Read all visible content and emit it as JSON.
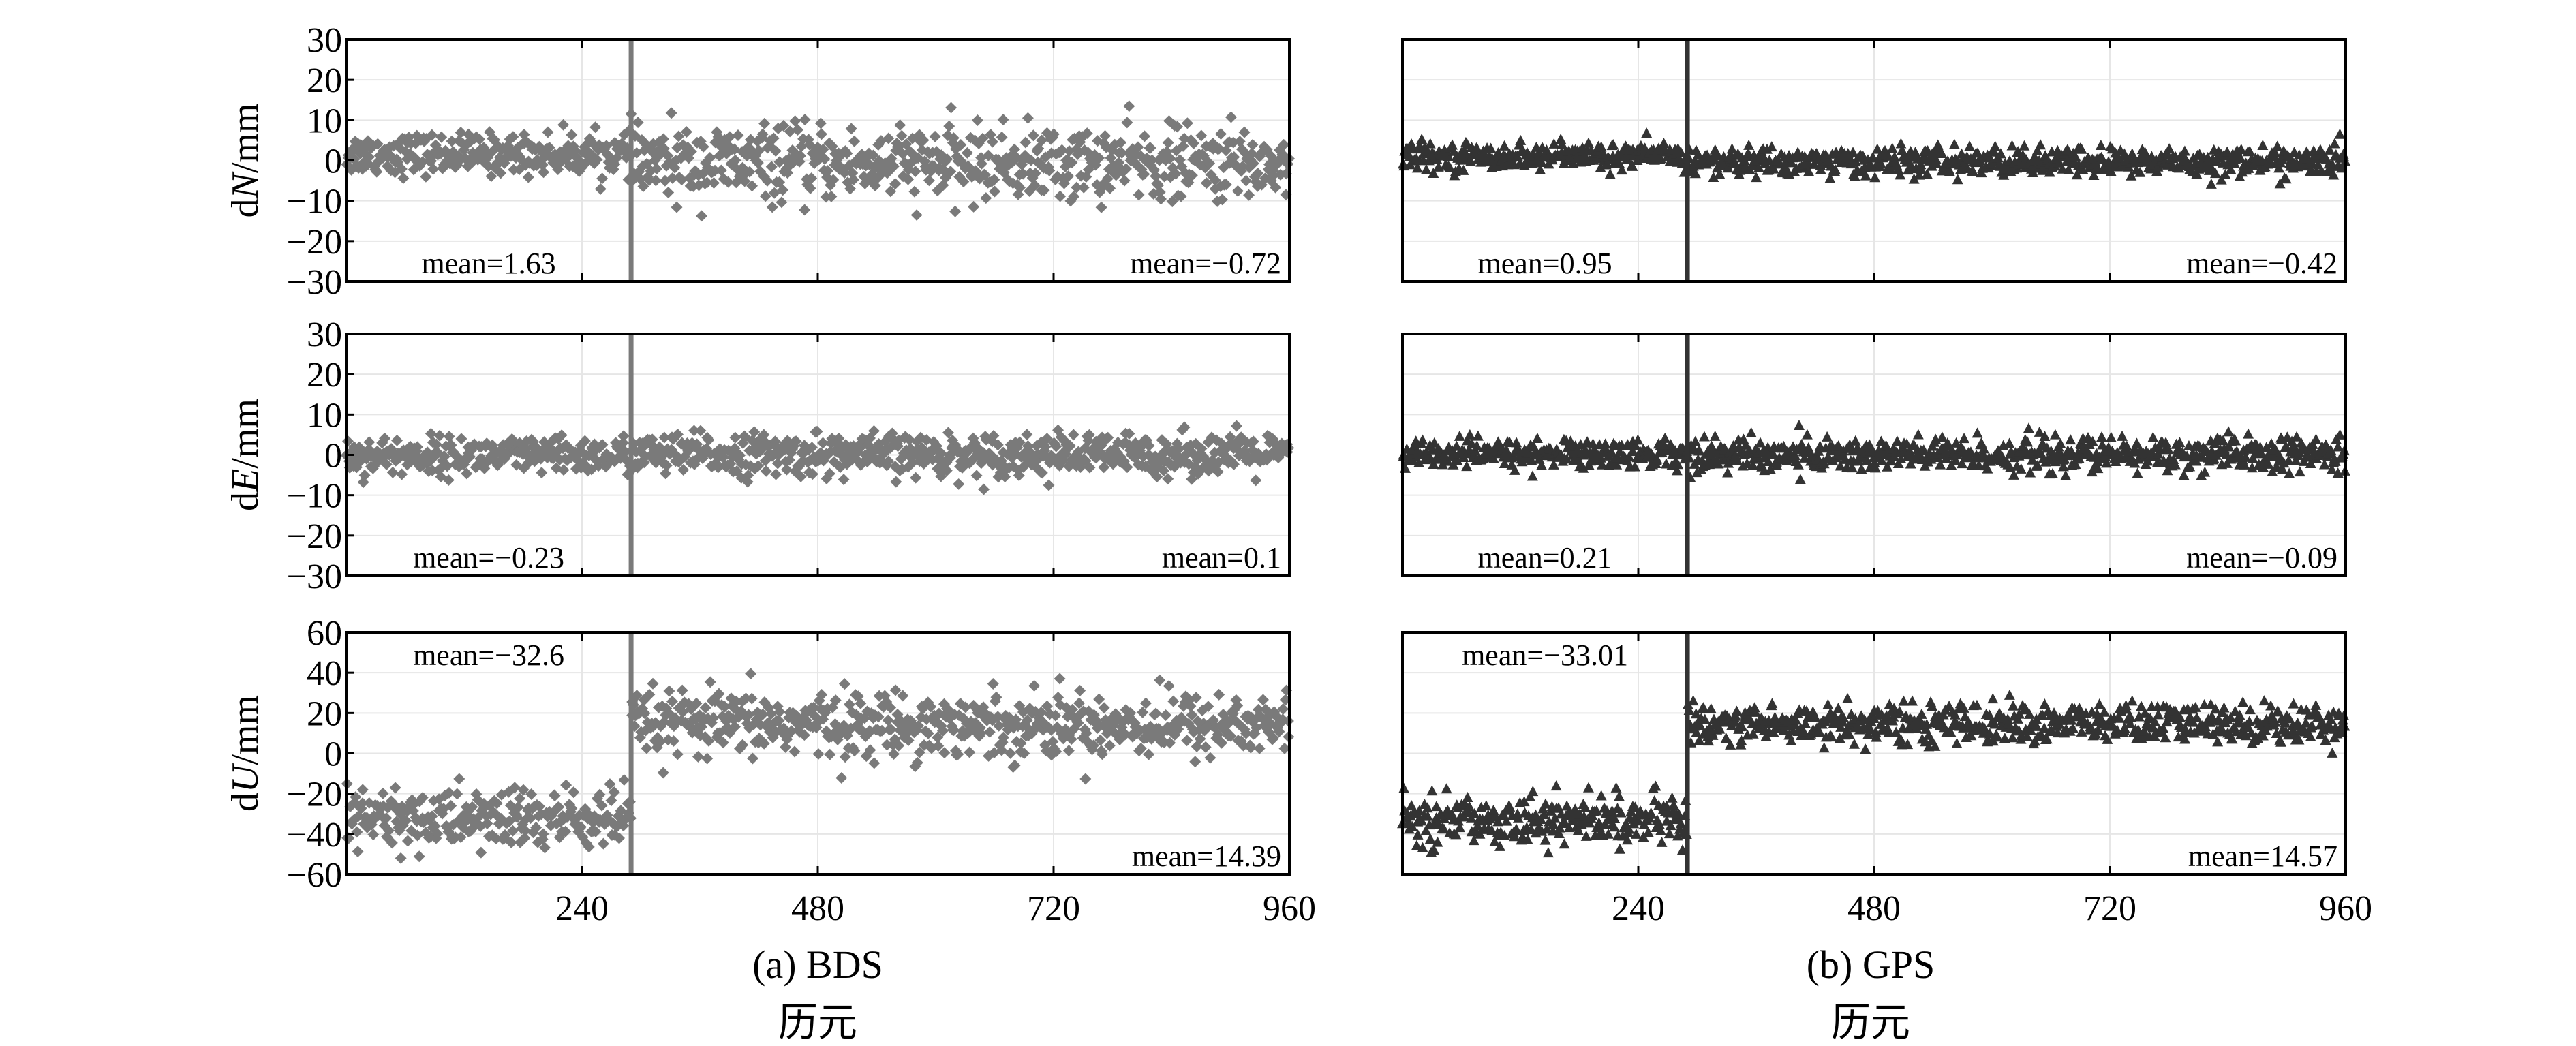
{
  "figure": {
    "x_label": "历元",
    "x_ticks": [
      240,
      480,
      720,
      960
    ]
  },
  "chart_data": [
    {
      "type": "scatter",
      "caption": "(a) BDS",
      "marker": "diamond",
      "color": "#7a7a7a",
      "x_range": [
        0,
        960
      ],
      "change_epoch": 290,
      "panels": [
        {
          "ylabel_prefix": "d",
          "ylabel_var": "N",
          "ylabel_suffix": "/mm",
          "ylim": [
            -30,
            30
          ],
          "yticks": [
            30,
            20,
            10,
            0,
            -10,
            -20,
            -30
          ],
          "segments": [
            {
              "range": [
                0,
                290
              ],
              "mean": 1.63,
              "sd": 2.5
            },
            {
              "range": [
                290,
                960
              ],
              "mean": -0.72,
              "sd": 4.5
            }
          ],
          "mean_labels": [
            "mean=1.63",
            "mean=−0.72"
          ],
          "mean_label_pos": "bottom"
        },
        {
          "ylabel_prefix": "d",
          "ylabel_var": "E",
          "ylabel_suffix": "/mm",
          "ylim": [
            -30,
            30
          ],
          "yticks": [
            30,
            20,
            10,
            0,
            -10,
            -20,
            -30
          ],
          "segments": [
            {
              "range": [
                0,
                290
              ],
              "mean": -0.23,
              "sd": 2.3
            },
            {
              "range": [
                290,
                960
              ],
              "mean": 0.1,
              "sd": 2.6
            }
          ],
          "mean_labels": [
            "mean=−0.23",
            "mean=0.1"
          ],
          "mean_label_pos": "bottom"
        },
        {
          "ylabel_prefix": "d",
          "ylabel_var": "U",
          "ylabel_suffix": "/mm",
          "ylim": [
            -60,
            60
          ],
          "yticks": [
            60,
            40,
            20,
            0,
            -20,
            -40,
            -60
          ],
          "segments": [
            {
              "range": [
                0,
                290
              ],
              "mean": -32.6,
              "sd": 8
            },
            {
              "range": [
                290,
                960
              ],
              "mean": 14.39,
              "sd": 8
            }
          ],
          "mean_labels": [
            "mean=−32.6",
            "mean=14.39"
          ],
          "mean_label_pos": "split"
        }
      ]
    },
    {
      "type": "scatter",
      "caption": "(b) GPS",
      "marker": "triangle",
      "color": "#333333",
      "x_range": [
        0,
        960
      ],
      "change_epoch": 290,
      "panels": [
        {
          "ylim": [
            -30,
            30
          ],
          "yticks": [],
          "segments": [
            {
              "range": [
                0,
                290
              ],
              "mean": 0.95,
              "sd": 1.6
            },
            {
              "range": [
                290,
                960
              ],
              "mean": -0.42,
              "sd": 1.8
            }
          ],
          "mean_labels": [
            "mean=0.95",
            "mean=−0.42"
          ],
          "mean_label_pos": "bottom"
        },
        {
          "ylim": [
            -30,
            30
          ],
          "yticks": [],
          "segments": [
            {
              "range": [
                0,
                290
              ],
              "mean": 0.21,
              "sd": 1.8
            },
            {
              "range": [
                290,
                960
              ],
              "mean": -0.09,
              "sd": 2.2
            }
          ],
          "mean_labels": [
            "mean=0.21",
            "mean=−0.09"
          ],
          "mean_label_pos": "bottom"
        },
        {
          "ylim": [
            -60,
            60
          ],
          "yticks": [],
          "segments": [
            {
              "range": [
                0,
                290
              ],
              "mean": -33.01,
              "sd": 6
            },
            {
              "range": [
                290,
                960
              ],
              "mean": 14.57,
              "sd": 5
            }
          ],
          "mean_labels": [
            "mean=−33.01",
            "mean=14.57"
          ],
          "mean_label_pos": "split"
        }
      ]
    }
  ]
}
